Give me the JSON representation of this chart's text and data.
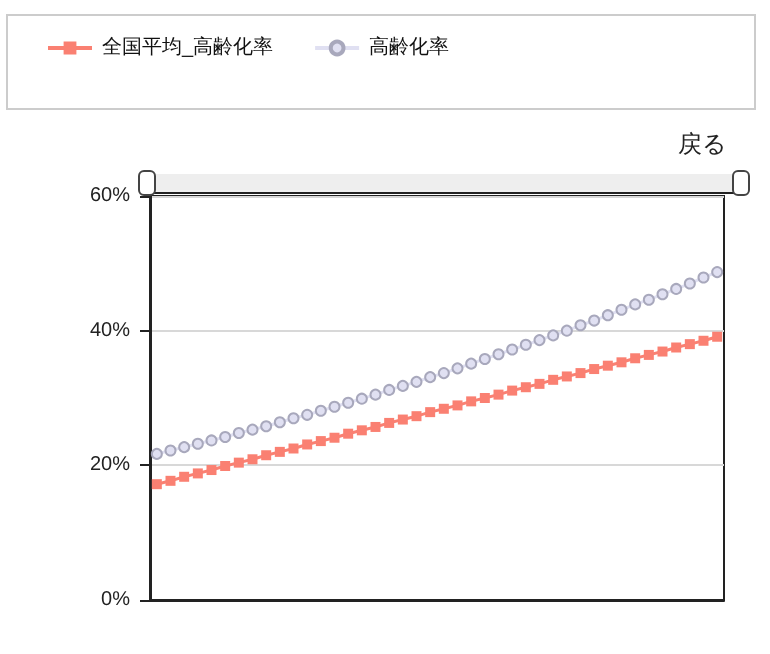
{
  "chart_data": {
    "type": "line",
    "categories": [
      null,
      null,
      null,
      null,
      null,
      null,
      null,
      null,
      null,
      null,
      null,
      null,
      null,
      null,
      null,
      null,
      null,
      null,
      null,
      null,
      null,
      null,
      null,
      null,
      null,
      null,
      null,
      null,
      null,
      null,
      null,
      null,
      null,
      null,
      null,
      null,
      null,
      null,
      null,
      null,
      null,
      null
    ],
    "series": [
      {
        "name": "全国平均_高齢化率",
        "color": "#fa8072",
        "marker": "square",
        "values": [
          17.2,
          17.7,
          18.3,
          18.8,
          19.3,
          19.9,
          20.4,
          20.9,
          21.5,
          22.0,
          22.5,
          23.1,
          23.6,
          24.1,
          24.7,
          25.2,
          25.7,
          26.3,
          26.8,
          27.3,
          27.9,
          28.4,
          28.9,
          29.5,
          30.0,
          30.5,
          31.1,
          31.6,
          32.1,
          32.7,
          33.2,
          33.7,
          34.3,
          34.8,
          35.3,
          35.9,
          36.4,
          36.9,
          37.5,
          38.0,
          38.5,
          39.1
        ]
      },
      {
        "name": "高齢化率",
        "color": "#e0e0f2",
        "marker": "circle",
        "values": [
          21.7,
          22.2,
          22.7,
          23.2,
          23.7,
          24.2,
          24.8,
          25.3,
          25.8,
          26.4,
          27.0,
          27.5,
          28.1,
          28.7,
          29.3,
          29.9,
          30.5,
          31.2,
          31.8,
          32.4,
          33.1,
          33.7,
          34.4,
          35.1,
          35.8,
          36.5,
          37.2,
          37.9,
          38.6,
          39.3,
          40.0,
          40.8,
          41.5,
          42.3,
          43.1,
          43.9,
          44.6,
          45.4,
          46.2,
          47.0,
          47.9,
          48.7
        ]
      }
    ],
    "ylim": [
      0,
      60
    ],
    "yticks": [
      {
        "value": 0,
        "label": "0%"
      },
      {
        "value": 20,
        "label": "20%"
      },
      {
        "value": 40,
        "label": "40%"
      },
      {
        "value": 60,
        "label": "60%"
      }
    ],
    "grid": "y",
    "legend": "top left",
    "annotations": [
      "戻る"
    ]
  }
}
